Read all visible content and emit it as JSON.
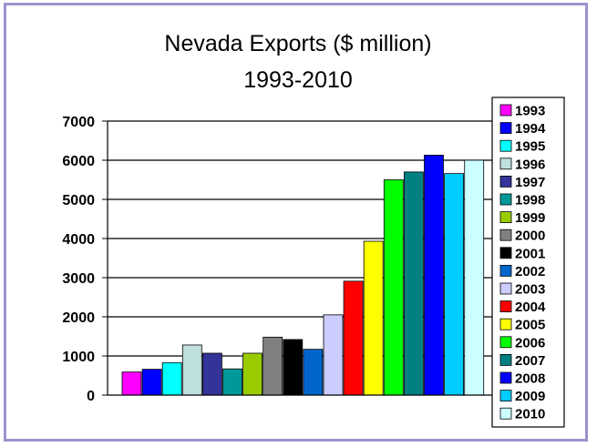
{
  "chart_data": {
    "type": "bar",
    "title": "Nevada Exports ($ million)",
    "subtitle": "1993-2010",
    "xlabel": "",
    "ylabel": "",
    "ylim": [
      0,
      7000
    ],
    "yticks": [
      0,
      1000,
      2000,
      3000,
      4000,
      5000,
      6000,
      7000
    ],
    "grid": true,
    "legend_position": "right",
    "categories": [
      "1993",
      "1994",
      "1995",
      "1996",
      "1997",
      "1998",
      "1999",
      "2000",
      "2001",
      "2002",
      "2003",
      "2004",
      "2005",
      "2006",
      "2007",
      "2008",
      "2009",
      "2010"
    ],
    "values": [
      590,
      660,
      830,
      1280,
      1070,
      670,
      1070,
      1480,
      1420,
      1170,
      2050,
      2910,
      3930,
      5500,
      5700,
      6130,
      5660,
      6000
    ],
    "colors": [
      "#ff00ff",
      "#0000ff",
      "#00ffff",
      "#c0e0e0",
      "#333399",
      "#009999",
      "#99cc00",
      "#808080",
      "#000000",
      "#0066cc",
      "#ccccff",
      "#ff0000",
      "#ffff00",
      "#00ff00",
      "#008080",
      "#0000ff",
      "#00ccff",
      "#ccffff"
    ]
  }
}
